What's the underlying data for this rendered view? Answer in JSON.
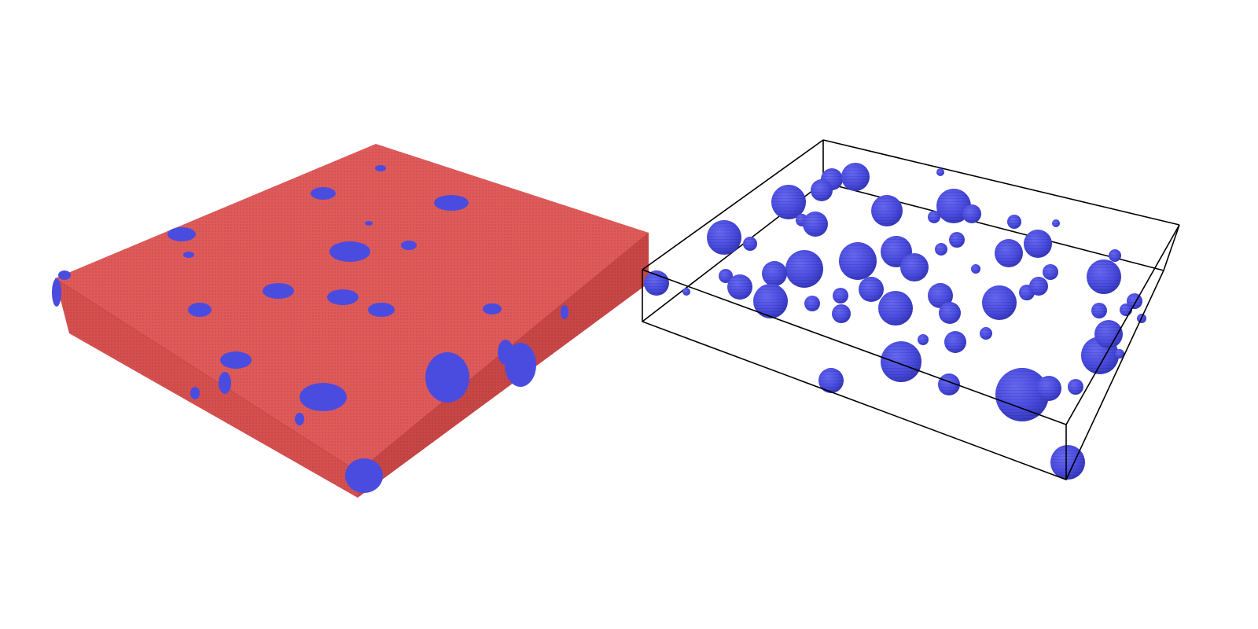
{
  "scene": {
    "colors": {
      "background": "#ffffff",
      "matrix_top": "#e05a5a",
      "matrix_left": "#d24e4e",
      "matrix_right": "#c94646",
      "particle": "#4a4ce0",
      "particle_shade": "#3a3cc4",
      "particle_highlight": "#6466f0",
      "frame_line": "#000000"
    },
    "panels": [
      {
        "id": "matrix-with-particles",
        "content": "red-matrix-block-with-blue-inclusions"
      },
      {
        "id": "particles-only",
        "content": "blue-spherical-particles-inside-wireframe-box"
      }
    ]
  }
}
